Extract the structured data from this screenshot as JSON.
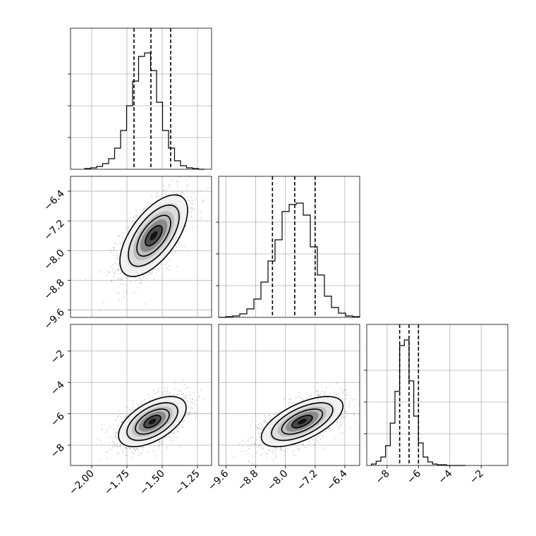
{
  "chart_data": {
    "type": "corner",
    "title": "",
    "parameters": [
      {
        "id": "p0",
        "range": [
          -2.15,
          -1.15
        ],
        "ticks": [
          {
            "value": -2.0,
            "label": "−2.00"
          },
          {
            "value": -1.75,
            "label": "−1.75"
          },
          {
            "value": -1.5,
            "label": "−1.50"
          },
          {
            "value": -1.25,
            "label": "−1.25"
          }
        ],
        "quantiles": [
          -1.7,
          -1.58,
          -1.44
        ]
      },
      {
        "id": "p1",
        "range": [
          -9.8,
          -6.0
        ],
        "ticks": [
          {
            "value": -9.6,
            "label": "−9.6"
          },
          {
            "value": -8.8,
            "label": "−8.8"
          },
          {
            "value": -8.0,
            "label": "−8.0"
          },
          {
            "value": -7.2,
            "label": "−7.2"
          },
          {
            "value": -6.4,
            "label": "−6.4"
          }
        ],
        "quantiles": [
          -8.35,
          -7.75,
          -7.2
        ]
      },
      {
        "id": "p2",
        "range": [
          -9.3,
          -0.3
        ],
        "ticks": [
          {
            "value": -8,
            "label": "−8"
          },
          {
            "value": -6,
            "label": "−6"
          },
          {
            "value": -4,
            "label": "−4"
          },
          {
            "value": -2,
            "label": "−2"
          }
        ],
        "ticks_y": [
          {
            "value": -8,
            "label": "−8"
          },
          {
            "value": -6,
            "label": "−6"
          },
          {
            "value": -4,
            "label": "−4"
          },
          {
            "value": -2,
            "label": "−2"
          }
        ],
        "quantiles": [
          -7.2,
          -6.6,
          -6.0
        ]
      }
    ],
    "histograms": [
      {
        "param": 0,
        "bin_edges_range": [
          -2.05,
          -1.2
        ],
        "nbins": 20,
        "counts": [
          1,
          2,
          4,
          8,
          15,
          30,
          55,
          90,
          125,
          160,
          165,
          140,
          95,
          55,
          30,
          12,
          5,
          2,
          1,
          0
        ],
        "ymax": 180
      },
      {
        "param": 1,
        "bin_edges_range": [
          -9.8,
          -6.0
        ],
        "nbins": 20,
        "counts": [
          0,
          1,
          2,
          5,
          12,
          26,
          50,
          80,
          110,
          150,
          160,
          162,
          145,
          100,
          60,
          30,
          14,
          6,
          2,
          1
        ],
        "ymax": 180
      },
      {
        "param": 2,
        "bin_edges_range": [
          -9.0,
          -3.0
        ],
        "nbins": 20,
        "counts": [
          2,
          6,
          12,
          28,
          60,
          105,
          170,
          178,
          120,
          70,
          32,
          12,
          5,
          2,
          1,
          1,
          0,
          0,
          0,
          0
        ],
        "ymax": 180
      }
    ],
    "pairs": [
      {
        "x": 0,
        "y": 1,
        "mean": [
          -1.56,
          -7.6
        ],
        "sd": [
          0.12,
          0.55
        ],
        "rho": 0.62,
        "sigma_levels": [
          0.5,
          1.0,
          1.5,
          2.0
        ]
      },
      {
        "x": 0,
        "y": 2,
        "mean": [
          -1.57,
          -6.5
        ],
        "sd": [
          0.12,
          0.8
        ],
        "rho": 0.55,
        "sigma_levels": [
          0.5,
          1.0,
          1.5,
          2.0
        ]
      },
      {
        "x": 1,
        "y": 2,
        "mean": [
          -7.55,
          -6.5
        ],
        "sd": [
          0.55,
          0.8
        ],
        "rho": 0.62,
        "sigma_levels": [
          0.5,
          1.0,
          1.5,
          2.0
        ]
      }
    ],
    "grid": true
  }
}
